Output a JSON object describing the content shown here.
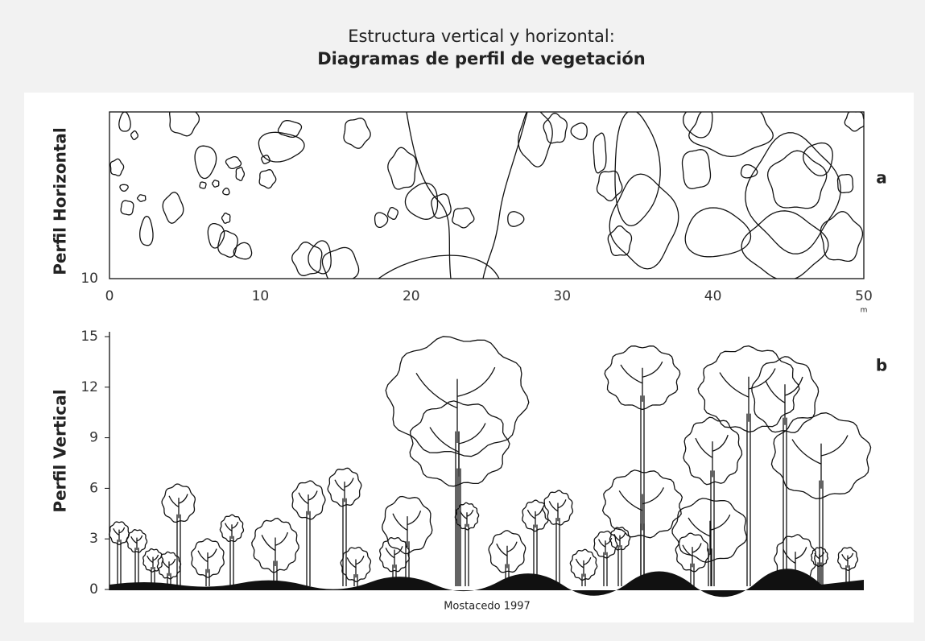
{
  "header": {
    "title": "Estructura vertical y horizontal:",
    "subtitle": "Diagramas de perfil de vegetación"
  },
  "panel_a": {
    "label": "a",
    "y_axis_title": "Perfil Horizontal",
    "y_tick": "10",
    "x_ticks": [
      "0",
      "10",
      "20",
      "30",
      "40",
      "50"
    ],
    "x_unit": "m"
  },
  "panel_b": {
    "label": "b",
    "y_axis_title": "Perfil Vertical",
    "y_ticks": [
      "0",
      "3",
      "6",
      "9",
      "12",
      "15"
    ]
  },
  "source": "Mostacedo 1997"
}
